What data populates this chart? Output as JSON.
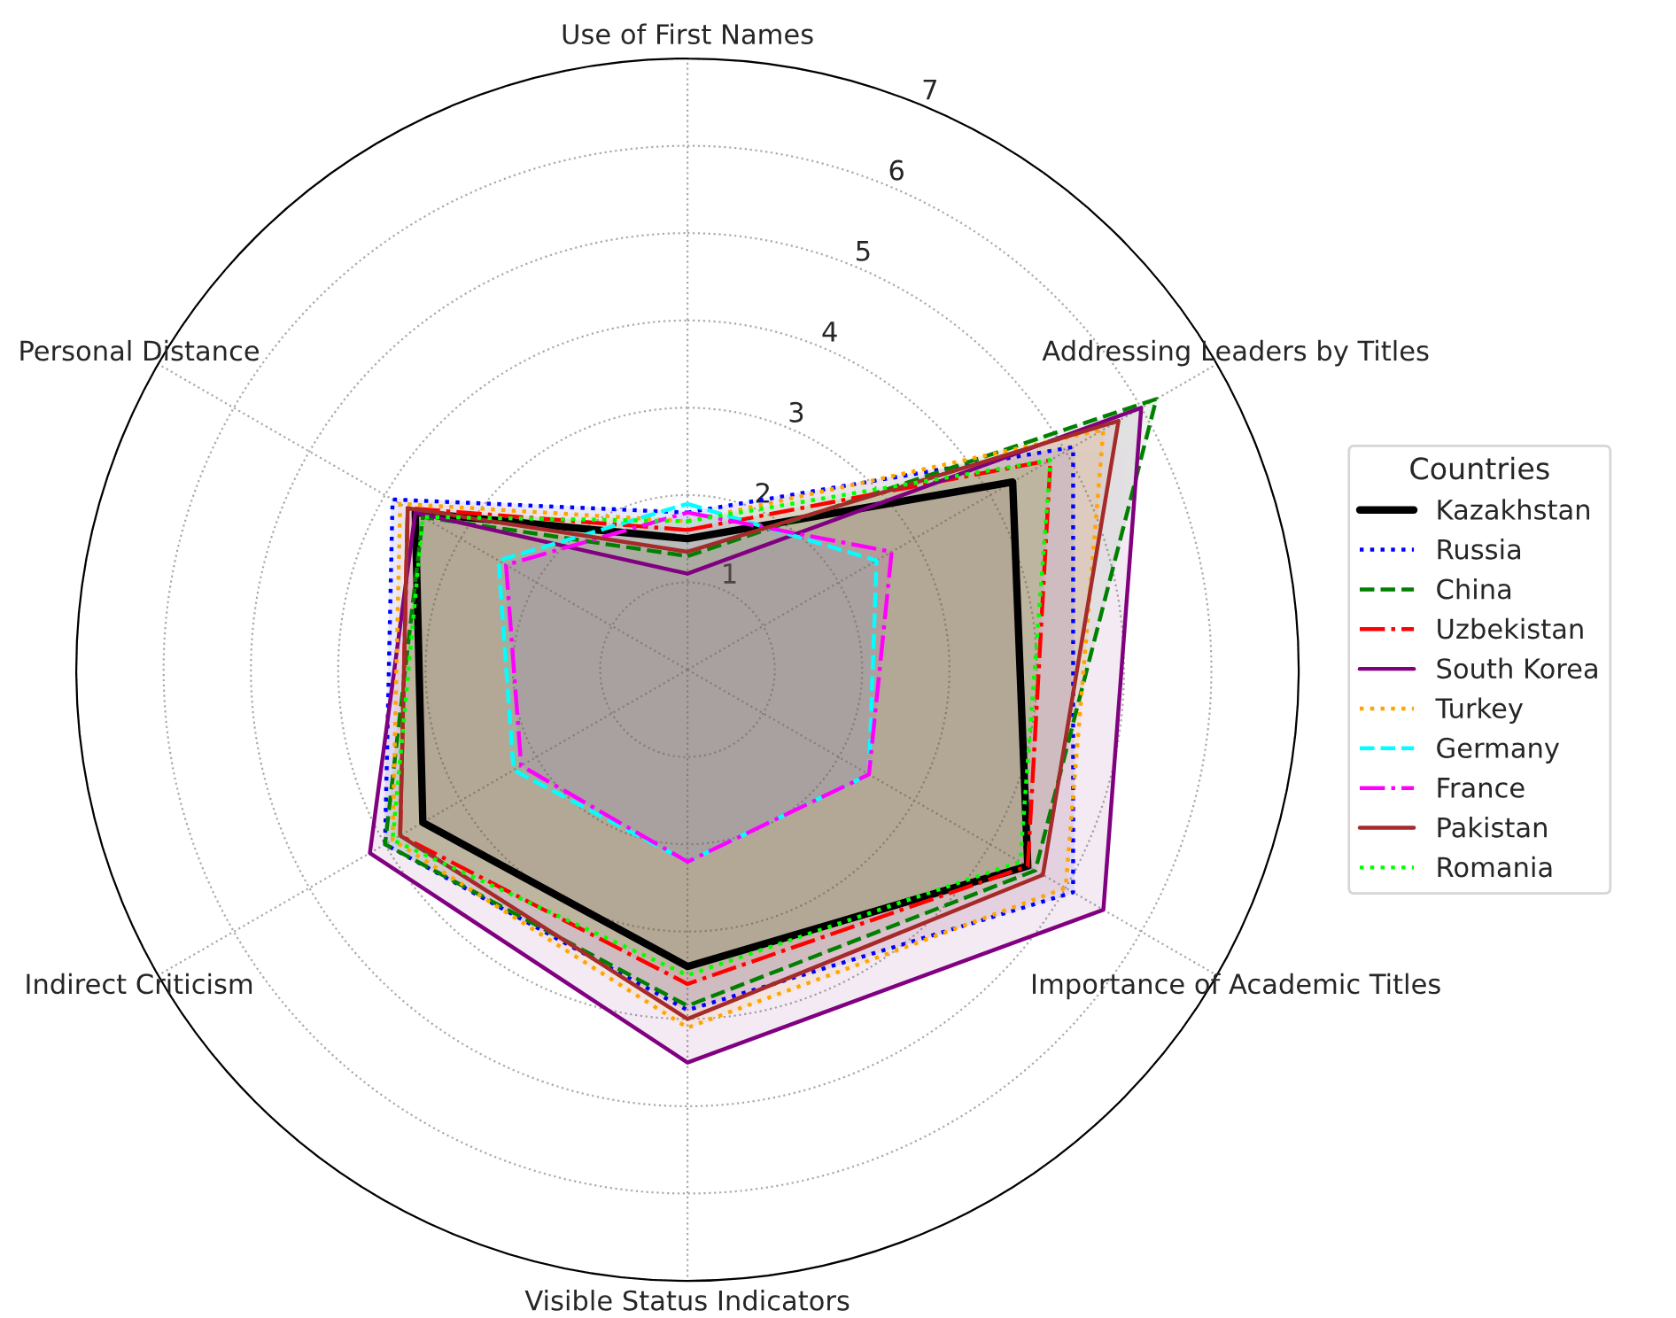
{
  "chart_data": {
    "type": "radar",
    "categories": [
      "Use of First Names",
      "Addressing Leaders by Titles",
      "Importance of Academic Titles",
      "Visible Status Indicators",
      "Indirect Criticism",
      "Personal Distance"
    ],
    "ylim": [
      0,
      7
    ],
    "yticks": [
      1,
      2,
      3,
      4,
      5,
      6,
      7
    ],
    "grid": true,
    "legend": "right",
    "legend_title": "Countries",
    "series": [
      {
        "name": "Kazakhstan",
        "color": "#000000",
        "line_style": "solid",
        "values": [
          1.5,
          4.3,
          4.5,
          3.4,
          3.5,
          3.6
        ]
      },
      {
        "name": "Russia",
        "color": "#0000ff",
        "line_style": "dotted",
        "values": [
          1.8,
          5.1,
          5.1,
          3.9,
          4.0,
          3.9
        ]
      },
      {
        "name": "China",
        "color": "#008000",
        "line_style": "dashed",
        "values": [
          1.3,
          6.2,
          4.6,
          3.85,
          4.0,
          3.5
        ]
      },
      {
        "name": "Uzbekistan",
        "color": "#ff0000",
        "line_style": "dashdot",
        "values": [
          1.6,
          4.8,
          4.5,
          3.6,
          3.8,
          3.7
        ]
      },
      {
        "name": "South Korea",
        "color": "#800080",
        "line_style": "solid",
        "values": [
          1.1,
          6.0,
          5.5,
          4.5,
          4.2,
          3.6
        ]
      },
      {
        "name": "Turkey",
        "color": "#ffa500",
        "line_style": "dotted",
        "values": [
          1.7,
          5.5,
          5.0,
          4.1,
          3.9,
          3.8
        ]
      },
      {
        "name": "Germany",
        "color": "#00ffff",
        "line_style": "dashed",
        "values": [
          1.9,
          2.5,
          2.4,
          2.2,
          2.3,
          2.5
        ]
      },
      {
        "name": "France",
        "color": "#ff00ff",
        "line_style": "dashdot",
        "values": [
          1.8,
          2.7,
          2.4,
          2.2,
          2.2,
          2.4
        ]
      },
      {
        "name": "Pakistan",
        "color": "#a52a2a",
        "line_style": "solid",
        "values": [
          1.35,
          5.7,
          4.7,
          4.0,
          3.8,
          3.7
        ]
      },
      {
        "name": "Romania",
        "color": "#00ff00",
        "line_style": "dotted",
        "values": [
          1.7,
          4.8,
          4.4,
          3.5,
          3.9,
          3.5
        ]
      }
    ]
  }
}
